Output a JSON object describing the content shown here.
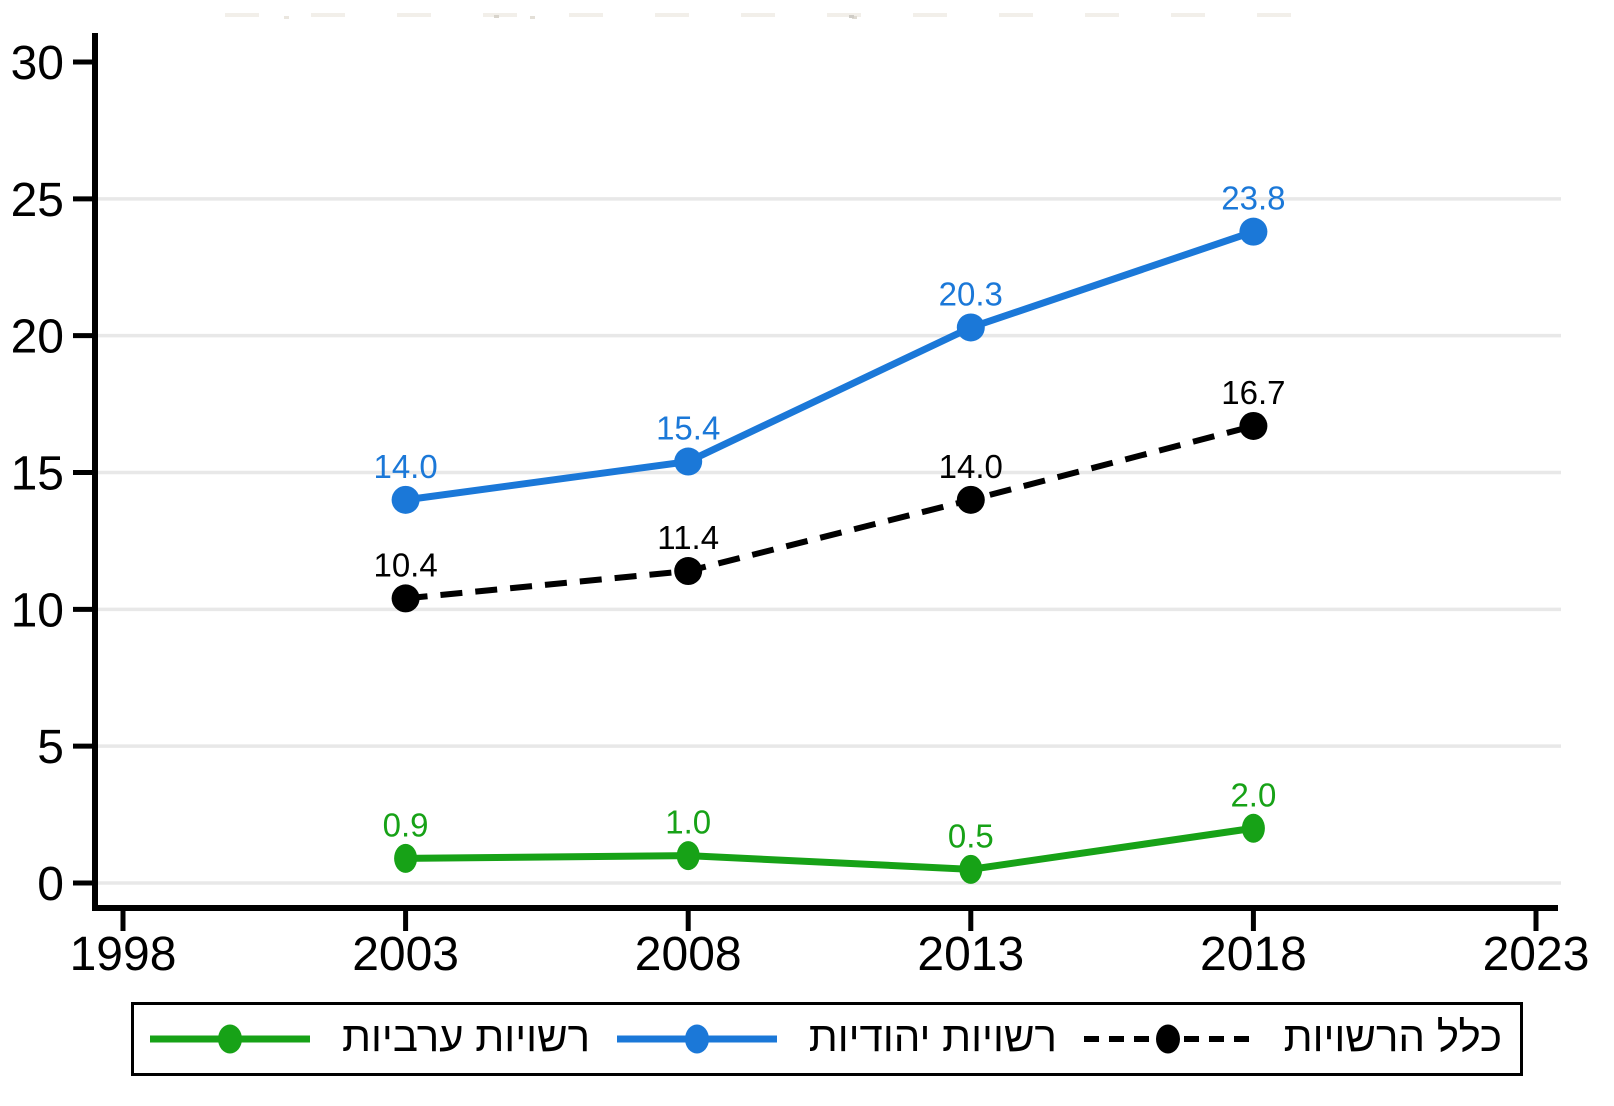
{
  "chart_data": {
    "type": "line",
    "title": "",
    "xlabel": "",
    "ylabel": "",
    "x": [
      2003,
      2008,
      2013,
      2018
    ],
    "series": [
      {
        "id": "arab-authorities",
        "name": "רשויות ערביות",
        "color": "#17a217",
        "line_style": "solid",
        "values": [
          0.9,
          1.0,
          0.5,
          2.0
        ],
        "point_labels": [
          "0.9",
          "1.0",
          "0.5",
          "2.0"
        ]
      },
      {
        "id": "jewish-authorities",
        "name": "רשויות יהודיות",
        "color": "#1b78d8",
        "line_style": "solid",
        "values": [
          14.0,
          15.4,
          20.3,
          23.8
        ],
        "point_labels": [
          "14.0",
          "15.4",
          "20.3",
          "23.8"
        ]
      },
      {
        "id": "all-authorities",
        "name": "כלל הרשויות",
        "color": "#000000",
        "line_style": "dashed",
        "values": [
          10.4,
          11.4,
          14.0,
          16.7
        ],
        "point_labels": [
          "10.4",
          "11.4",
          "14.0",
          "16.7"
        ]
      }
    ],
    "xlim": [
      1998,
      2023
    ],
    "ylim": [
      0,
      30
    ],
    "x_ticks": [
      "1998",
      "2003",
      "2008",
      "2013",
      "2018",
      "2023"
    ],
    "y_ticks": [
      "0",
      "5",
      "10",
      "15",
      "20",
      "25",
      "30"
    ],
    "grid_y_values": [
      0,
      5,
      10,
      15,
      20,
      25
    ],
    "grid": "horizontal-light-gray",
    "legend_position": "bottom-box",
    "axis_color": "#000000",
    "grid_color": "#e8e8e8",
    "background_color": "#ffffff"
  }
}
